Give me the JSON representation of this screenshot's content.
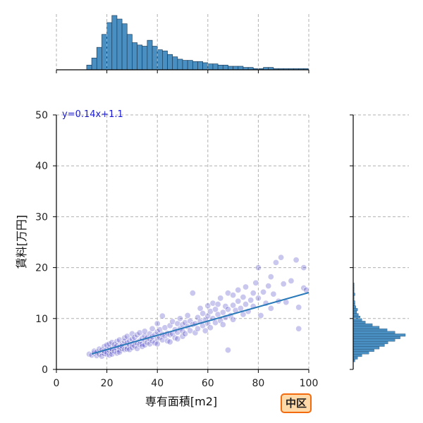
{
  "chart_data": {
    "type": "scatter",
    "xlabel": "専有面積[m2]",
    "ylabel": "賃料[万円]",
    "xlim": [
      0,
      100
    ],
    "ylim": [
      0,
      50
    ],
    "x_ticks": [
      0,
      20,
      40,
      60,
      80,
      100
    ],
    "y_ticks": [
      0,
      10,
      20,
      30,
      40,
      50
    ],
    "grid": true,
    "regression": {
      "slope": 0.14,
      "intercept": 1.1,
      "label": "y=0.14x+1.1",
      "x_range": [
        14,
        100
      ]
    },
    "points": [
      [
        13,
        3.0
      ],
      [
        14,
        2.8
      ],
      [
        15,
        3.2
      ],
      [
        15,
        3.6
      ],
      [
        16,
        2.7
      ],
      [
        16,
        3.4
      ],
      [
        17,
        3.0
      ],
      [
        17,
        4.0
      ],
      [
        18,
        3.3
      ],
      [
        18,
        2.6
      ],
      [
        18,
        3.8
      ],
      [
        19,
        3.1
      ],
      [
        19,
        4.5
      ],
      [
        19,
        3.6
      ],
      [
        20,
        3.0
      ],
      [
        20,
        3.9
      ],
      [
        20,
        4.8
      ],
      [
        20,
        3.4
      ],
      [
        21,
        2.8
      ],
      [
        21,
        3.7
      ],
      [
        21,
        4.2
      ],
      [
        21,
        5.0
      ],
      [
        22,
        3.5
      ],
      [
        22,
        4.0
      ],
      [
        22,
        3.0
      ],
      [
        22,
        5.3
      ],
      [
        23,
        4.3
      ],
      [
        23,
        3.6
      ],
      [
        23,
        4.9
      ],
      [
        24,
        4.0
      ],
      [
        24,
        3.2
      ],
      [
        24,
        5.5
      ],
      [
        24,
        4.6
      ],
      [
        25,
        3.8
      ],
      [
        25,
        4.4
      ],
      [
        25,
        5.8
      ],
      [
        25,
        3.4
      ],
      [
        26,
        4.1
      ],
      [
        26,
        5.0
      ],
      [
        26,
        4.6
      ],
      [
        27,
        3.9
      ],
      [
        27,
        5.5
      ],
      [
        27,
        6.2
      ],
      [
        28,
        4.4
      ],
      [
        28,
        5.2
      ],
      [
        28,
        4.0
      ],
      [
        28,
        6.5
      ],
      [
        29,
        4.8
      ],
      [
        29,
        5.6
      ],
      [
        29,
        3.9
      ],
      [
        30,
        5.0
      ],
      [
        30,
        4.3
      ],
      [
        30,
        6.0
      ],
      [
        30,
        7.0
      ],
      [
        31,
        5.4
      ],
      [
        31,
        4.6
      ],
      [
        31,
        6.3
      ],
      [
        32,
        5.2
      ],
      [
        32,
        4.1
      ],
      [
        32,
        6.8
      ],
      [
        33,
        5.6
      ],
      [
        33,
        4.9
      ],
      [
        33,
        7.2
      ],
      [
        34,
        5.0
      ],
      [
        34,
        6.1
      ],
      [
        34,
        4.5
      ],
      [
        35,
        5.8
      ],
      [
        35,
        6.6
      ],
      [
        35,
        4.8
      ],
      [
        35,
        7.5
      ],
      [
        36,
        5.3
      ],
      [
        36,
        6.2
      ],
      [
        37,
        5.0
      ],
      [
        37,
        7.0
      ],
      [
        37,
        6.0
      ],
      [
        38,
        5.6
      ],
      [
        38,
        6.4
      ],
      [
        38,
        8.0
      ],
      [
        39,
        5.2
      ],
      [
        39,
        6.8
      ],
      [
        40,
        6.0
      ],
      [
        40,
        7.4
      ],
      [
        40,
        5.0
      ],
      [
        40,
        9.0
      ],
      [
        41,
        6.3
      ],
      [
        41,
        7.8
      ],
      [
        42,
        5.8
      ],
      [
        42,
        6.9
      ],
      [
        42,
        10.5
      ],
      [
        43,
        6.6
      ],
      [
        43,
        8.2
      ],
      [
        44,
        5.6
      ],
      [
        44,
        7.1
      ],
      [
        45,
        6.8
      ],
      [
        45,
        8.6
      ],
      [
        45,
        5.4
      ],
      [
        46,
        7.0
      ],
      [
        46,
        9.4
      ],
      [
        47,
        6.2
      ],
      [
        47,
        7.8
      ],
      [
        48,
        7.3
      ],
      [
        48,
        9.0
      ],
      [
        48,
        6.0
      ],
      [
        49,
        8.0
      ],
      [
        49,
        10.0
      ],
      [
        50,
        7.5
      ],
      [
        50,
        8.8
      ],
      [
        50,
        6.5
      ],
      [
        51,
        9.2
      ],
      [
        51,
        7.0
      ],
      [
        52,
        8.4
      ],
      [
        52,
        10.6
      ],
      [
        53,
        7.6
      ],
      [
        53,
        9.5
      ],
      [
        54,
        8.8
      ],
      [
        54,
        15.0
      ],
      [
        55,
        9.0
      ],
      [
        55,
        7.2
      ],
      [
        56,
        10.2
      ],
      [
        56,
        8.0
      ],
      [
        57,
        9.4
      ],
      [
        57,
        12.0
      ],
      [
        58,
        8.6
      ],
      [
        58,
        11.0
      ],
      [
        59,
        9.8
      ],
      [
        59,
        7.6
      ],
      [
        60,
        10.5
      ],
      [
        60,
        9.0
      ],
      [
        60,
        12.5
      ],
      [
        61,
        8.2
      ],
      [
        61,
        11.4
      ],
      [
        62,
        10.0
      ],
      [
        62,
        13.0
      ],
      [
        63,
        9.2
      ],
      [
        63,
        11.8
      ],
      [
        64,
        10.8
      ],
      [
        64,
        12.8
      ],
      [
        65,
        9.6
      ],
      [
        65,
        14.0
      ],
      [
        66,
        11.2
      ],
      [
        66,
        8.8
      ],
      [
        67,
        12.4
      ],
      [
        67,
        10.2
      ],
      [
        68,
        11.8
      ],
      [
        68,
        15.0
      ],
      [
        68,
        3.8
      ],
      [
        69,
        10.6
      ],
      [
        70,
        12.6
      ],
      [
        70,
        14.6
      ],
      [
        70,
        9.8
      ],
      [
        71,
        11.6
      ],
      [
        72,
        13.4
      ],
      [
        72,
        15.6
      ],
      [
        73,
        12.0
      ],
      [
        74,
        14.2
      ],
      [
        74,
        10.8
      ],
      [
        75,
        12.8
      ],
      [
        75,
        16.2
      ],
      [
        76,
        11.4
      ],
      [
        77,
        13.6
      ],
      [
        78,
        15.0
      ],
      [
        78,
        12.4
      ],
      [
        79,
        17.0
      ],
      [
        80,
        14.0
      ],
      [
        80,
        20.0
      ],
      [
        81,
        10.6
      ],
      [
        82,
        15.2
      ],
      [
        83,
        13.0
      ],
      [
        84,
        16.4
      ],
      [
        85,
        12.0
      ],
      [
        85,
        18.2
      ],
      [
        86,
        14.8
      ],
      [
        87,
        21.0
      ],
      [
        88,
        13.4
      ],
      [
        89,
        22.0
      ],
      [
        90,
        16.8
      ],
      [
        91,
        13.2
      ],
      [
        93,
        17.4
      ],
      [
        95,
        21.5
      ],
      [
        96,
        8.0
      ],
      [
        96,
        12.2
      ],
      [
        98,
        20.0
      ],
      [
        98,
        16.0
      ],
      [
        99,
        15.6
      ]
    ],
    "x_marginal_hist": {
      "bin_start": 12,
      "bin_width": 2,
      "counts": [
        4,
        10,
        19,
        30,
        40,
        46,
        43,
        39,
        30,
        23,
        21,
        20,
        25,
        20,
        17,
        16,
        13,
        11,
        9,
        8,
        8,
        7,
        7,
        6,
        5,
        5,
        4,
        4,
        3,
        3,
        3,
        2,
        2,
        1,
        1,
        2,
        2,
        1,
        1,
        1,
        1,
        1,
        1,
        1
      ]
    },
    "y_marginal_hist": {
      "bin_start": 1.5,
      "bin_width": 0.5,
      "counts": [
        2,
        5,
        10,
        18,
        24,
        30,
        36,
        40,
        48,
        54,
        60,
        48,
        39,
        30,
        22,
        14,
        10,
        8,
        6,
        4,
        5,
        3,
        2,
        2,
        1,
        1,
        2,
        1,
        1,
        1,
        1
      ]
    }
  },
  "badge": {
    "label": "中区"
  },
  "colors": {
    "points": "#3d35c0",
    "points_edge": "#ffffff",
    "regression_line": "#2a7ab9",
    "equation_text": "#1a1acc",
    "hist_fill": "#4a8fc2",
    "hist_edge": "#1b3f5e",
    "grid": "#b0b0b0",
    "badge_border": "#f26b0f",
    "badge_fill": "#ffd9a8"
  }
}
